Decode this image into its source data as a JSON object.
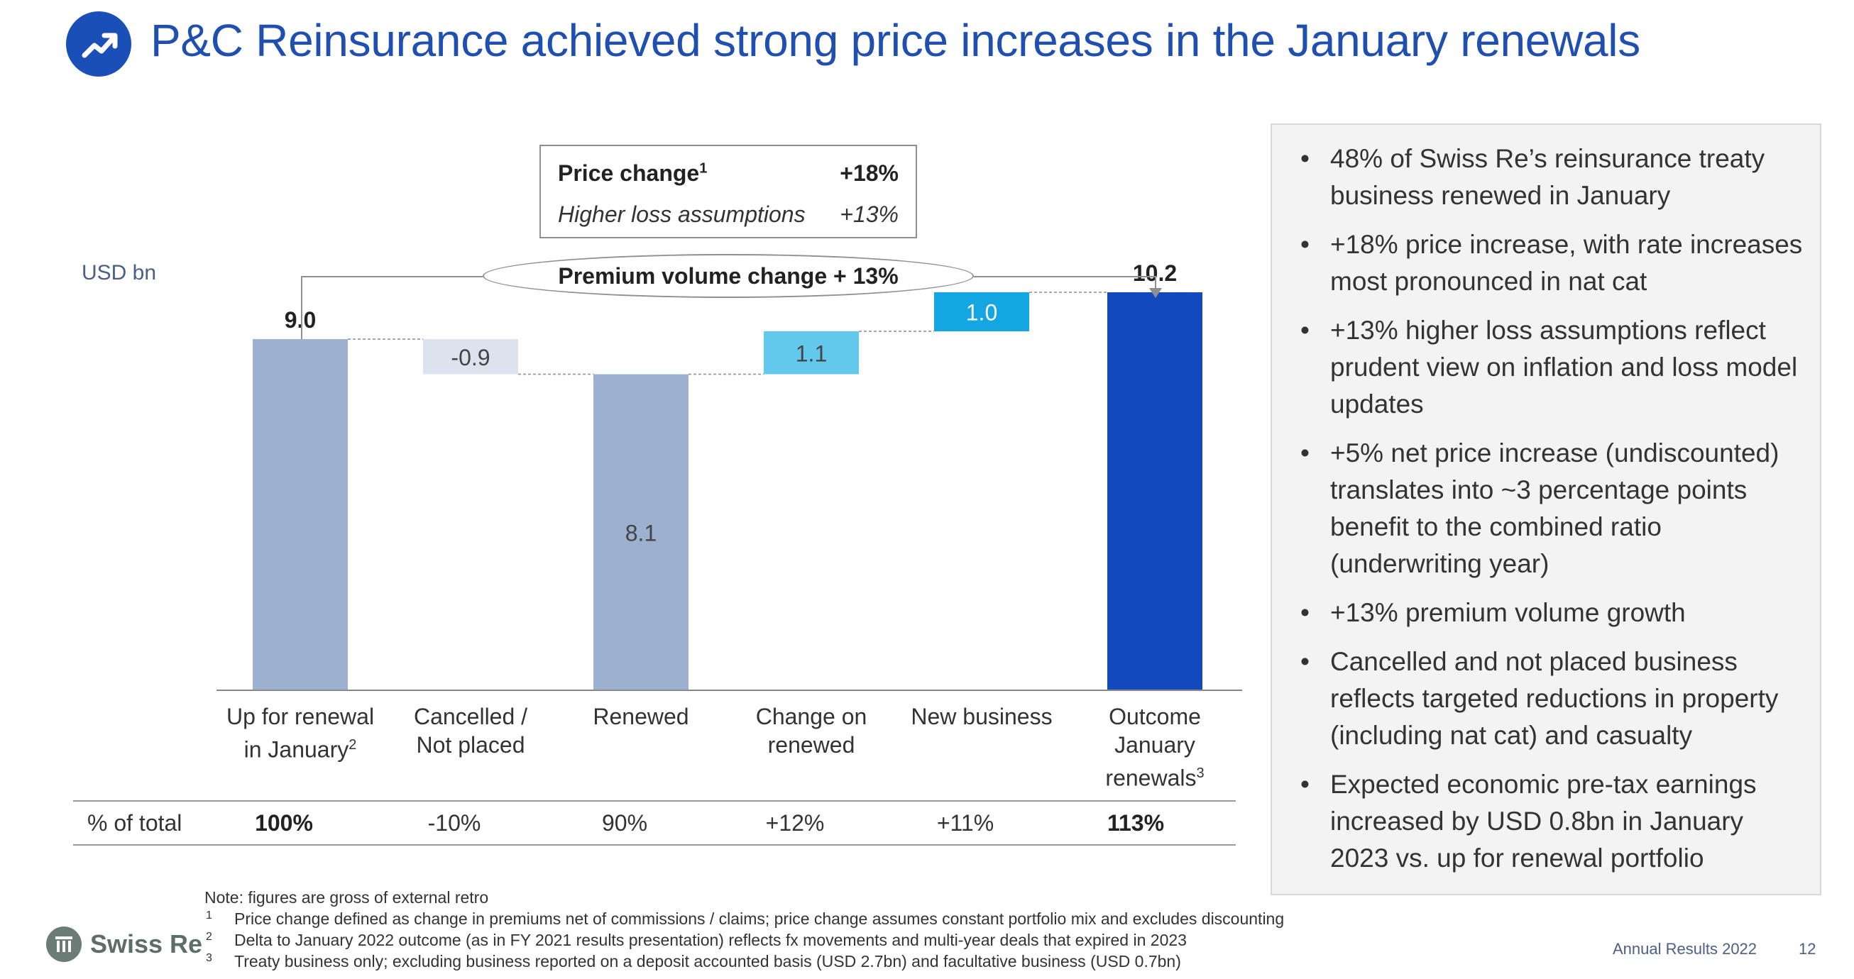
{
  "header": {
    "title": "P&C Reinsurance achieved strong price increases in the January renewals",
    "icon": "trending-up-icon"
  },
  "chart": {
    "unit": "USD bn",
    "price_box": {
      "row1_label": "Price change",
      "row1_sup": "1",
      "row1_value": "+18%",
      "row2_label": "Higher loss assumptions",
      "row2_value": "+13%"
    },
    "premium_label": "Premium volume change + 13%",
    "categories": [
      {
        "line1": "Up for renewal",
        "line2": "in January",
        "sup": "2"
      },
      {
        "line1": "Cancelled /",
        "line2": "Not placed",
        "sup": ""
      },
      {
        "line1": "Renewed",
        "line2": "",
        "sup": ""
      },
      {
        "line1": "Change on",
        "line2": "renewed",
        "sup": ""
      },
      {
        "line1": "New business",
        "line2": "",
        "sup": ""
      },
      {
        "line1": "Outcome",
        "line2": "January",
        "line3": "renewals",
        "sup": "3"
      }
    ],
    "percent_row": {
      "label": "% of total",
      "values": [
        "100%",
        "-10%",
        "90%",
        "+12%",
        "+11%",
        "113%"
      ]
    }
  },
  "chart_data": {
    "type": "waterfall",
    "title": "P&C Reinsurance achieved strong price increases in the January renewals",
    "ylabel": "USD bn",
    "categories": [
      "Up for renewal in January",
      "Cancelled / Not placed",
      "Renewed",
      "Change on renewed",
      "New business",
      "Outcome January renewals"
    ],
    "values": [
      9.0,
      -0.9,
      8.1,
      1.1,
      1.0,
      10.2
    ],
    "value_labels": [
      "9.0",
      "-0.9",
      "8.1",
      "1.1",
      "1.0",
      "10.2"
    ],
    "bar_kinds": [
      "total",
      "delta",
      "total",
      "delta",
      "delta",
      "total"
    ],
    "colors": [
      "#9cb0cf",
      "#dce2ee",
      "#9cb0cf",
      "#62c8ec",
      "#14a6e2",
      "#1448bd"
    ],
    "label_colors": [
      "#222222",
      "#444444",
      "#444444",
      "#444444",
      "#ffffff",
      "#222222"
    ],
    "label_bold": [
      true,
      false,
      false,
      false,
      false,
      true
    ],
    "ylim": [
      0,
      11.5
    ],
    "percent_of_total": [
      "100%",
      "-10%",
      "90%",
      "+12%",
      "+11%",
      "113%"
    ]
  },
  "side_panel": {
    "bullets": [
      "48% of Swiss Re’s reinsurance treaty business renewed in January",
      "+18% price increase, with rate increases most pronounced in nat cat",
      "+13% higher loss assumptions reflect prudent view on inflation and loss model updates",
      "+5% net price increase (undiscounted) translates into ~3 percentage points benefit to the combined ratio (underwriting year)",
      "+13% premium volume growth",
      "Cancelled and not placed business reflects targeted reductions in property (including nat cat) and casualty",
      "Expected economic pre-tax earnings increased by USD 0.8bn in January 2023 vs. up for renewal portfolio"
    ]
  },
  "footnotes": {
    "note": "Note: figures are gross of external retro",
    "items": [
      {
        "num": "1",
        "text": "Price change defined as change in premiums net of commissions / claims; price change assumes constant portfolio mix and excludes discounting"
      },
      {
        "num": "2",
        "text": "Delta to January 2022 outcome (as in FY 2021 results presentation) reflects fx movements and multi-year deals that expired in 2023"
      },
      {
        "num": "3",
        "text": "Treaty business only; excluding business reported on a deposit accounted basis (USD 2.7bn) and facultative business (USD 0.7bn)"
      }
    ]
  },
  "footer": {
    "logo_text": "Swiss Re",
    "logo_icon": "swiss-re-logo-icon",
    "document": "Annual Results 2022",
    "page": "12"
  }
}
